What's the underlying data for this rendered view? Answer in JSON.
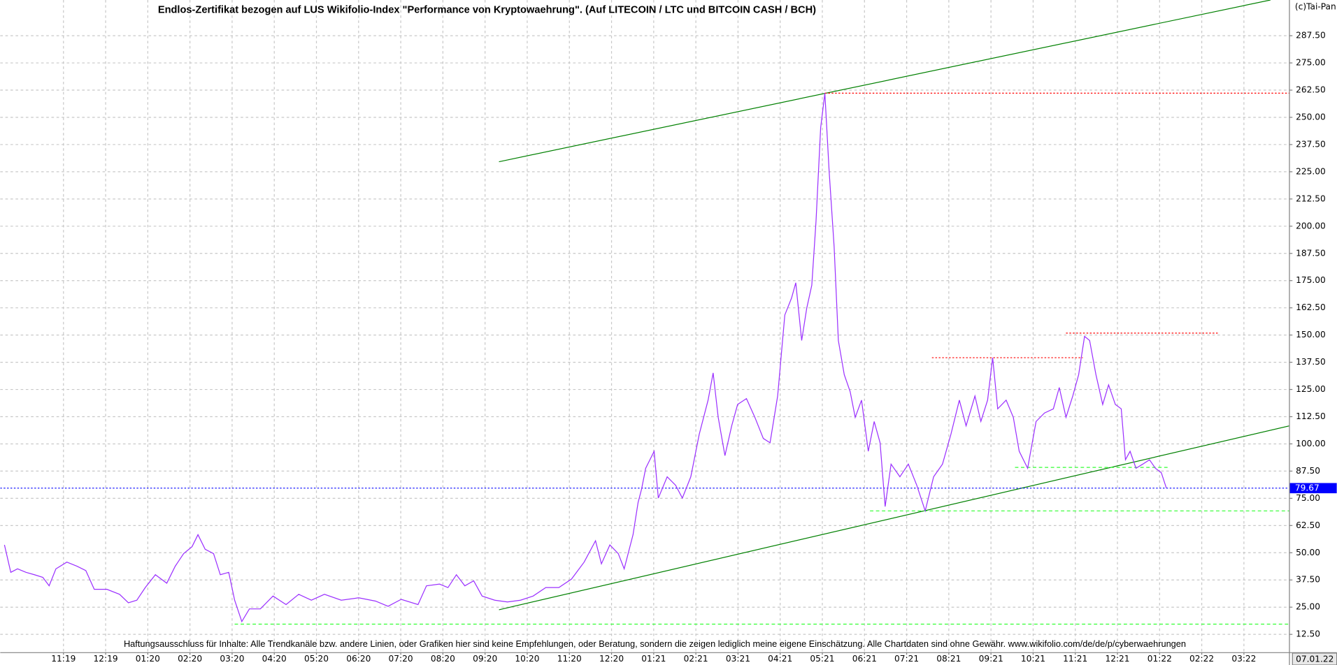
{
  "chart_data": {
    "type": "line",
    "title": "Endlos-Zertifikat bezogen auf LUS Wikifolio-Index \"Performance von Kryptowaehrung\". (Auf LITECOIN / LTC und BITCOIN CASH / BCH)",
    "copyright": "(c)Tai-Pan",
    "disclaimer": "Haftungsausschluss für Inhalte: Alle Trendkanäle bzw. andere Linien, oder Grafiken hier sind keine Empfehlungen, oder Beratung, sondern die zeigen lediglich meine eigene Einschätzung. Alle Chartdaten sind ohne Gewähr.  www.wikifolio.com/de/de/p/cyberwaehrungen",
    "date_label": "07.01.22",
    "color": "#9b30ff",
    "x": [
      -1.4,
      -1.25,
      -1.09,
      -0.89,
      -0.69,
      -0.49,
      -0.34,
      -0.18,
      0.08,
      0.32,
      0.53,
      0.73,
      1.03,
      1.33,
      1.54,
      1.74,
      1.94,
      2.18,
      2.45,
      2.65,
      2.85,
      3.05,
      3.19,
      3.36,
      3.56,
      3.72,
      3.92,
      4.06,
      4.23,
      4.41,
      4.67,
      4.97,
      5.28,
      5.58,
      5.88,
      6.19,
      6.59,
      7.0,
      7.4,
      7.7,
      8.01,
      8.41,
      8.61,
      8.92,
      9.12,
      9.32,
      9.52,
      9.73,
      9.93,
      10.23,
      10.53,
      10.84,
      11.14,
      11.44,
      11.75,
      12.05,
      12.35,
      12.62,
      12.76,
      12.96,
      13.16,
      13.3,
      13.51,
      13.63,
      13.71,
      13.81,
      13.91,
      14.01,
      14.11,
      14.32,
      14.52,
      14.68,
      14.88,
      15.08,
      15.29,
      15.41,
      15.53,
      15.69,
      15.85,
      15.99,
      16.2,
      16.4,
      16.6,
      16.76,
      16.94,
      17.11,
      17.27,
      17.37,
      17.51,
      17.63,
      17.75,
      17.85,
      17.96,
      18.06,
      18.16,
      18.28,
      18.38,
      18.52,
      18.66,
      18.78,
      18.93,
      19.09,
      19.23,
      19.37,
      19.49,
      19.63,
      19.84,
      20.04,
      20.24,
      20.44,
      20.64,
      20.85,
      21.05,
      21.25,
      21.41,
      21.62,
      21.76,
      21.92,
      22.04,
      22.16,
      22.36,
      22.53,
      22.67,
      22.87,
      23.07,
      23.27,
      23.48,
      23.62,
      23.78,
      23.94,
      24.08,
      24.22,
      24.34,
      24.49,
      24.65,
      24.79,
      24.95,
      25.09,
      25.19,
      25.3,
      25.44,
      25.6,
      25.76,
      25.9,
      26.04,
      26.16
    ],
    "values": [
      53.6,
      41.0,
      42.6,
      41.0,
      39.9,
      38.7,
      34.8,
      42.6,
      45.7,
      43.8,
      41.8,
      33.2,
      33.2,
      30.9,
      27.0,
      28.2,
      34.0,
      39.9,
      36.0,
      43.8,
      49.6,
      52.8,
      58.3,
      51.6,
      49.6,
      39.9,
      41.0,
      28.2,
      18.4,
      24.2,
      24.2,
      30.1,
      26.2,
      30.9,
      28.2,
      30.9,
      28.2,
      29.3,
      27.8,
      25.4,
      28.6,
      26.2,
      34.8,
      35.6,
      34.0,
      39.9,
      34.8,
      37.1,
      30.1,
      28.2,
      27.4,
      28.2,
      30.1,
      34.0,
      34.0,
      37.9,
      45.7,
      55.5,
      44.9,
      53.6,
      49.6,
      42.6,
      58.3,
      73.1,
      79.0,
      88.8,
      92.7,
      96.6,
      75.1,
      84.9,
      81.0,
      75.1,
      84.9,
      104.4,
      120.1,
      132.6,
      112.2,
      94.6,
      108.3,
      118.1,
      120.8,
      112.2,
      102.5,
      100.5,
      122.0,
      159.2,
      167.0,
      174.0,
      147.5,
      162.3,
      172.9,
      202.2,
      245.2,
      261.1,
      225.7,
      190.5,
      147.5,
      131.8,
      124.0,
      112.2,
      120.1,
      96.6,
      110.3,
      100.5,
      71.2,
      90.7,
      84.9,
      90.7,
      81.0,
      69.2,
      84.9,
      90.7,
      104.4,
      120.1,
      108.3,
      122.0,
      110.3,
      120.1,
      139.6,
      116.1,
      120.1,
      112.2,
      96.6,
      88.8,
      110.3,
      114.2,
      116.1,
      125.9,
      112.2,
      122.0,
      131.8,
      149.4,
      147.5,
      131.8,
      118.1,
      127.1,
      118.1,
      116.1,
      92.7,
      96.6,
      88.8,
      90.7,
      92.7,
      88.8,
      86.8,
      79.7
    ],
    "last_price": 79.67,
    "last_price_color": "#0000ff",
    "trendlines": [
      {
        "color": "#008000",
        "dash": "solid",
        "x": [
          10.33,
          28.63
        ],
        "y": [
          229.6,
          303.9
        ]
      },
      {
        "color": "#008000",
        "dash": "solid",
        "x": [
          10.33,
          29.08
        ],
        "y": [
          23.8,
          108.3
        ]
      },
      {
        "color": "#ff0000",
        "dash": "dotted",
        "x": [
          18.06,
          29.08
        ],
        "y": [
          261.1,
          261.1
        ]
      },
      {
        "color": "#ff0000",
        "dash": "dotted",
        "x": [
          20.6,
          24.18
        ],
        "y": [
          139.6,
          139.6
        ]
      },
      {
        "color": "#ff0000",
        "dash": "dotted",
        "x": [
          23.78,
          27.42
        ],
        "y": [
          150.9,
          150.9
        ]
      },
      {
        "color": "#33ff33",
        "dash": "dashed",
        "x": [
          4.06,
          29.08
        ],
        "y": [
          17.2,
          17.2
        ]
      },
      {
        "color": "#33ff33",
        "dash": "dashed",
        "x": [
          19.13,
          29.08
        ],
        "y": [
          69.2,
          69.2
        ]
      },
      {
        "color": "#33ff33",
        "dash": "dashed",
        "x": [
          22.57,
          26.2
        ],
        "y": [
          89.2,
          89.2
        ]
      }
    ],
    "xlim": [
      -1.5,
      29.07
    ],
    "ylim": [
      4.3,
      303.9
    ],
    "xticks": [
      {
        "value": 0,
        "label": "11:19"
      },
      {
        "value": 1,
        "label": "12:19"
      },
      {
        "value": 2,
        "label": "01:20"
      },
      {
        "value": 3,
        "label": "02:20"
      },
      {
        "value": 4,
        "label": "03:20"
      },
      {
        "value": 5,
        "label": "04:20"
      },
      {
        "value": 6,
        "label": "05:20"
      },
      {
        "value": 7,
        "label": "06:20"
      },
      {
        "value": 8,
        "label": "07:20"
      },
      {
        "value": 9,
        "label": "08:20"
      },
      {
        "value": 10,
        "label": "09:20"
      },
      {
        "value": 11,
        "label": "10:20"
      },
      {
        "value": 12,
        "label": "11:20"
      },
      {
        "value": 13,
        "label": "12:20"
      },
      {
        "value": 14,
        "label": "01:21"
      },
      {
        "value": 15,
        "label": "02:21"
      },
      {
        "value": 16,
        "label": "03:21"
      },
      {
        "value": 17,
        "label": "04:21"
      },
      {
        "value": 18,
        "label": "05:21"
      },
      {
        "value": 19,
        "label": "06:21"
      },
      {
        "value": 20,
        "label": "07:21"
      },
      {
        "value": 21,
        "label": "08:21"
      },
      {
        "value": 22,
        "label": "09:21"
      },
      {
        "value": 23,
        "label": "10:21"
      },
      {
        "value": 24,
        "label": "11:21"
      },
      {
        "value": 25,
        "label": "12:21"
      },
      {
        "value": 26,
        "label": "01:22"
      },
      {
        "value": 27,
        "label": "02:22"
      },
      {
        "value": 28,
        "label": "03:22"
      }
    ],
    "yticks": [
      {
        "value": 12.5,
        "label": "12.50"
      },
      {
        "value": 25,
        "label": "25.00"
      },
      {
        "value": 37.5,
        "label": "37.50"
      },
      {
        "value": 50,
        "label": "50.00"
      },
      {
        "value": 62.5,
        "label": "62.50"
      },
      {
        "value": 75,
        "label": "75.00"
      },
      {
        "value": 87.5,
        "label": "87.50"
      },
      {
        "value": 100,
        "label": "100.00"
      },
      {
        "value": 112.5,
        "label": "112.50"
      },
      {
        "value": 125,
        "label": "125.00"
      },
      {
        "value": 137.5,
        "label": "137.50"
      },
      {
        "value": 150,
        "label": "150.00"
      },
      {
        "value": 162.5,
        "label": "162.50"
      },
      {
        "value": 175,
        "label": "175.00"
      },
      {
        "value": 187.5,
        "label": "187.50"
      },
      {
        "value": 200,
        "label": "200.00"
      },
      {
        "value": 212.5,
        "label": "212.50"
      },
      {
        "value": 225,
        "label": "225.00"
      },
      {
        "value": 237.5,
        "label": "237.50"
      },
      {
        "value": 250,
        "label": "250.00"
      },
      {
        "value": 262.5,
        "label": "262.50"
      },
      {
        "value": 275,
        "label": "275.00"
      },
      {
        "value": 287.5,
        "label": "287.50"
      }
    ],
    "grid": true
  }
}
